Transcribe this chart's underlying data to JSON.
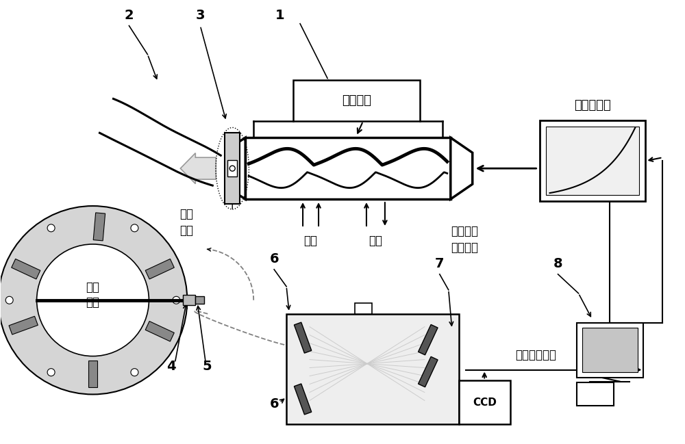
{
  "labels": {
    "power_system": "电源系统",
    "spectrum_db": "光谱数据库",
    "detail_show": "细节\n展示",
    "supply_gas": "供气",
    "supply_water": "供水",
    "direct_reflect": "直接反映\n气流焚値",
    "high_temp_flow": "高温\n气流",
    "raw_data": "原始数据处理",
    "ccd": "CCD"
  }
}
